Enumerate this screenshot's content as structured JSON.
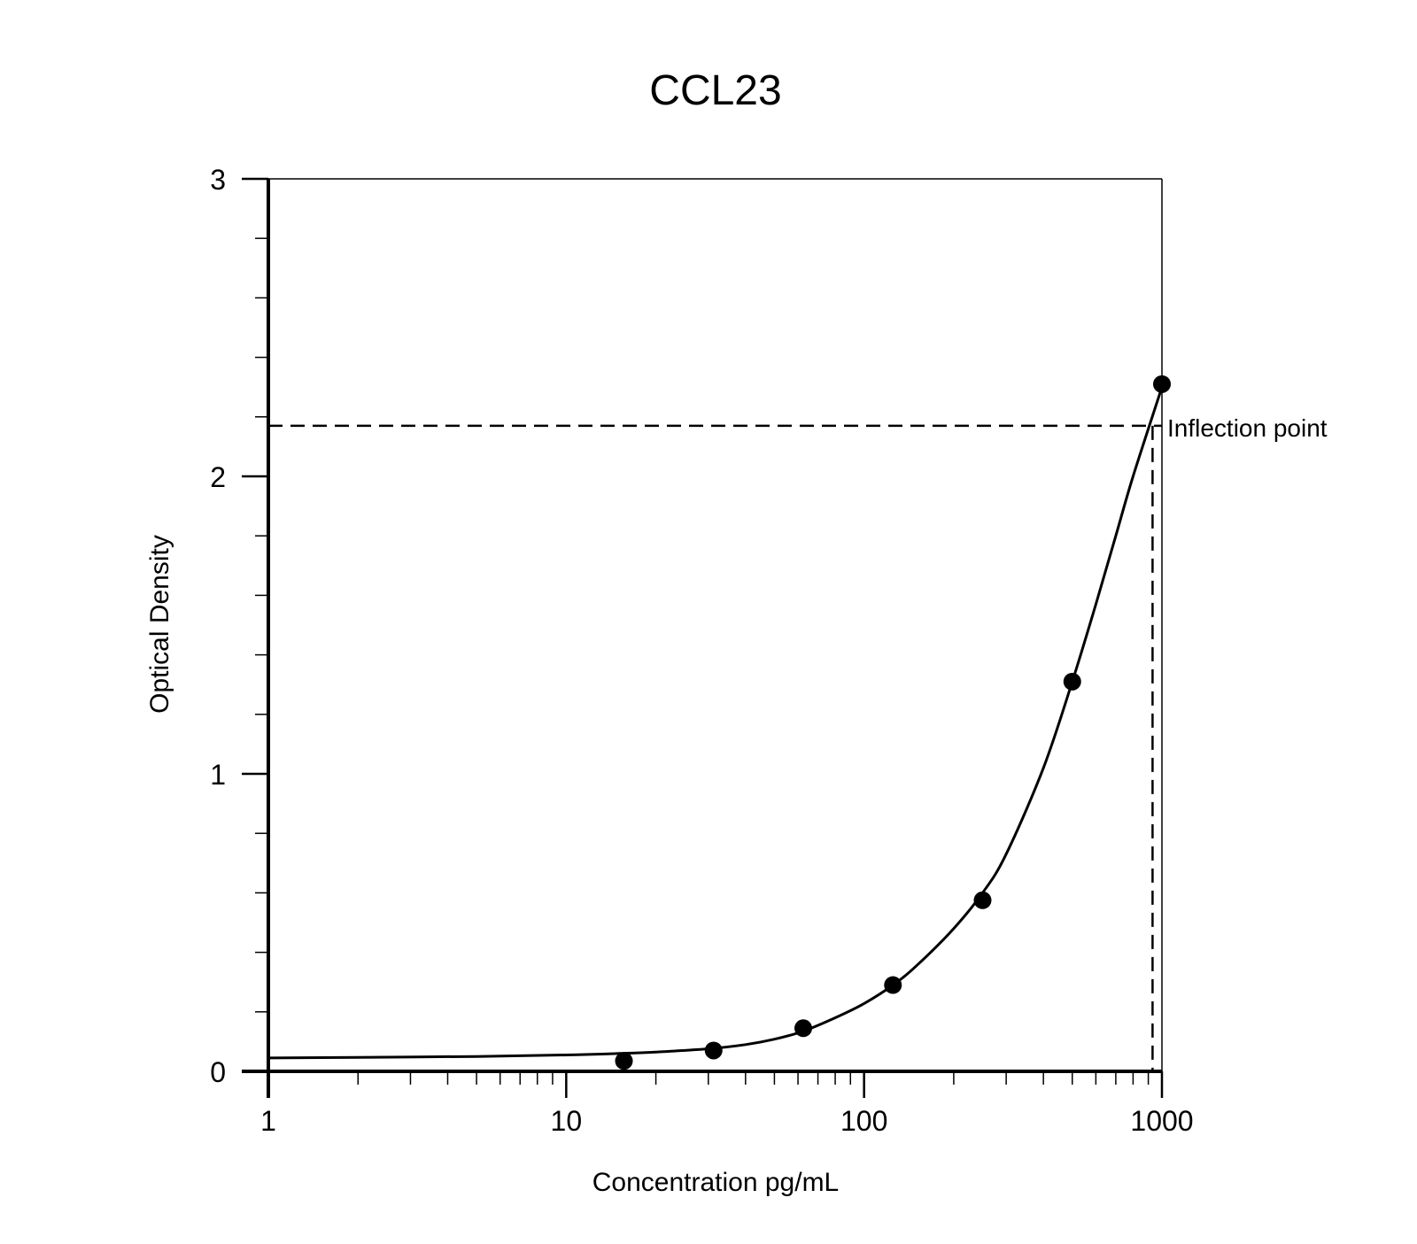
{
  "chart_data": {
    "type": "scatter",
    "title": "CCL23",
    "xlabel": "Concentration pg/mL",
    "ylabel": "Optical Density",
    "xscale": "log",
    "xlim": [
      1,
      1000
    ],
    "ylim": [
      0,
      3
    ],
    "x_ticks": [
      {
        "value": 1,
        "label": "1"
      },
      {
        "value": 10,
        "label": "10"
      },
      {
        "value": 100,
        "label": "100"
      },
      {
        "value": 1000,
        "label": "1000"
      }
    ],
    "y_ticks": [
      {
        "value": 0,
        "label": "0"
      },
      {
        "value": 1,
        "label": "1"
      },
      {
        "value": 2,
        "label": "2"
      },
      {
        "value": 3,
        "label": "3"
      }
    ],
    "points": {
      "x": [
        15.625,
        31.25,
        62.5,
        125,
        250,
        500,
        1000
      ],
      "y": [
        0.035,
        0.07,
        0.145,
        0.29,
        0.575,
        1.31,
        2.31
      ]
    },
    "fit_curve": {
      "x": [
        1,
        2,
        5,
        10,
        15,
        20,
        30,
        40,
        50,
        62.5,
        80,
        100,
        125,
        150,
        200,
        250,
        300,
        400,
        500,
        600,
        700,
        800,
        1000
      ],
      "y": [
        0.045,
        0.047,
        0.05,
        0.055,
        0.06,
        0.065,
        0.076,
        0.09,
        0.108,
        0.135,
        0.18,
        0.228,
        0.29,
        0.355,
        0.48,
        0.6,
        0.73,
        1.02,
        1.31,
        1.57,
        1.8,
        2.0,
        2.3
      ]
    },
    "reference_lines": {
      "y": 2.17,
      "x": 930,
      "label": "Inflection point"
    },
    "grid": false,
    "legend": "none",
    "colors": {
      "marker": "#000000",
      "curve": "#000000",
      "axes": "#000000"
    }
  }
}
